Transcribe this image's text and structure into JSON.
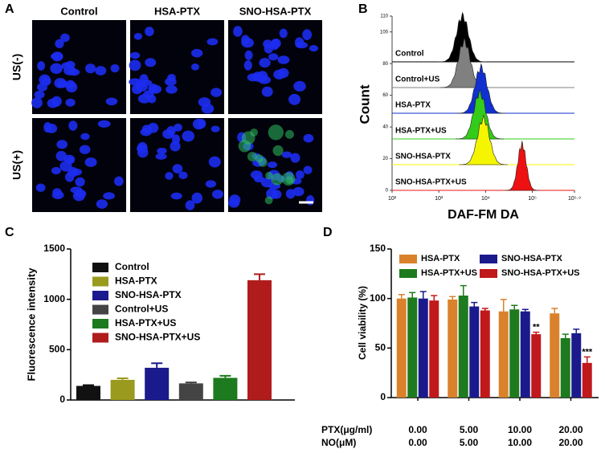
{
  "chart_data": [
    {
      "panel_label": "A",
      "type": "image-grid",
      "columns": [
        "Control",
        "HSA-PTX",
        "SNO-HSA-PTX"
      ],
      "rows": [
        "US(-)",
        "US(+)"
      ]
    },
    {
      "panel_label": "B",
      "type": "histogram-overlay",
      "xlabel": "DAF-FM DA",
      "ylabel": "Count",
      "xscale": "log",
      "xlim": [
        100,
        794328
      ],
      "xticks": [
        {
          "value": 100,
          "label": "10²"
        },
        {
          "value": 1000,
          "label": "10³"
        },
        {
          "value": 10000,
          "label": "10⁴"
        },
        {
          "value": 100000,
          "label": "10⁵"
        },
        {
          "value": 794328,
          "label": "10⁵·⁹"
        }
      ],
      "ylim": [
        0,
        110
      ],
      "yticks": [
        0,
        20,
        40,
        60,
        80,
        100,
        110
      ],
      "series": [
        {
          "name": "Control",
          "color": "#000000",
          "peak": 3200
        },
        {
          "name": "Control+US",
          "color": "#808080",
          "peak": 3500
        },
        {
          "name": "HSA-PTX",
          "color": "#1030d0",
          "peak": 8000
        },
        {
          "name": "HSA-PTX+US",
          "color": "#33cc1a",
          "peak": 7500
        },
        {
          "name": "SNO-HSA-PTX",
          "color": "#f5f500",
          "peak": 9000
        },
        {
          "name": "SNO-HSA-PTX+US",
          "color": "#ee1111",
          "peak": 60000
        }
      ]
    },
    {
      "panel_label": "C",
      "type": "bar",
      "ylabel": "Fluorescence intensity",
      "categories": [
        "Control",
        "HSA-PTX",
        "SNO-HSA-PTX",
        "Control+US",
        "HSA-PTX+US",
        "SNO-HSA-PTX+US"
      ],
      "colors": [
        "#111111",
        "#9a9a1e",
        "#1a1a8c",
        "#444444",
        "#1e7a1e",
        "#b01c1c"
      ],
      "values": [
        140,
        200,
        320,
        165,
        220,
        1190
      ],
      "errors": [
        8,
        15,
        45,
        10,
        20,
        60
      ],
      "ylim": [
        0,
        1500
      ],
      "yticks": [
        0,
        500,
        1000,
        1500
      ]
    },
    {
      "panel_label": "D",
      "type": "grouped-bar",
      "ylabel": "Cell viability (%)",
      "category_rows": [
        "PTX(μg/ml)",
        "NO(μM)"
      ],
      "categories": [
        "0.00",
        "5.00",
        "10.00",
        "20.00"
      ],
      "categories2": [
        "0.00",
        "5.00",
        "10.00",
        "20.00"
      ],
      "ylim": [
        0,
        150
      ],
      "yticks": [
        0,
        50,
        100,
        150
      ],
      "series": [
        {
          "name": "HSA-PTX",
          "color": "#d9822b",
          "values": [
            100,
            99,
            87,
            85
          ],
          "errors": [
            4,
            3,
            12,
            5
          ]
        },
        {
          "name": "HSA-PTX+US",
          "color": "#1e7a1e",
          "values": [
            101,
            103,
            89,
            60
          ],
          "errors": [
            5,
            10,
            4,
            4
          ]
        },
        {
          "name": "SNO-HSA-PTX",
          "color": "#1a1a8c",
          "values": [
            100,
            92,
            87,
            65
          ],
          "errors": [
            7,
            4,
            2,
            4
          ]
        },
        {
          "name": "SNO-HSA-PTX+US",
          "color": "#c0191b",
          "values": [
            98,
            88,
            64,
            35
          ],
          "errors": [
            5,
            2,
            2,
            6
          ],
          "annotations": [
            null,
            null,
            "**",
            "***"
          ]
        }
      ]
    }
  ]
}
